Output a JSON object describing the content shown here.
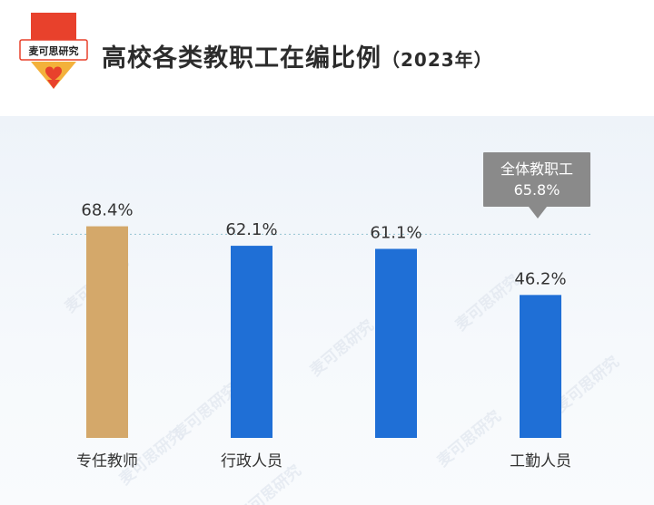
{
  "header": {
    "brand": "麦可思研究",
    "title": "高校各类教职工在编比例",
    "year": "（2023年）"
  },
  "chart_data": {
    "type": "bar",
    "categories": [
      "专任教师",
      "行政人员",
      "",
      "工勤人员"
    ],
    "values": [
      68.4,
      62.1,
      61.1,
      46.2
    ],
    "value_labels": [
      "68.4%",
      "62.1%",
      "61.1%",
      "46.2%"
    ],
    "bar_colors": [
      "#d4a86a",
      "#1f6fd6",
      "#1f6fd6",
      "#1f6fd6"
    ],
    "ylim": [
      0,
      80
    ],
    "reference": {
      "value": 65.8,
      "label_line1": "全体教职工",
      "label_line2": "65.8%"
    },
    "watermark": "麦可思研究"
  }
}
